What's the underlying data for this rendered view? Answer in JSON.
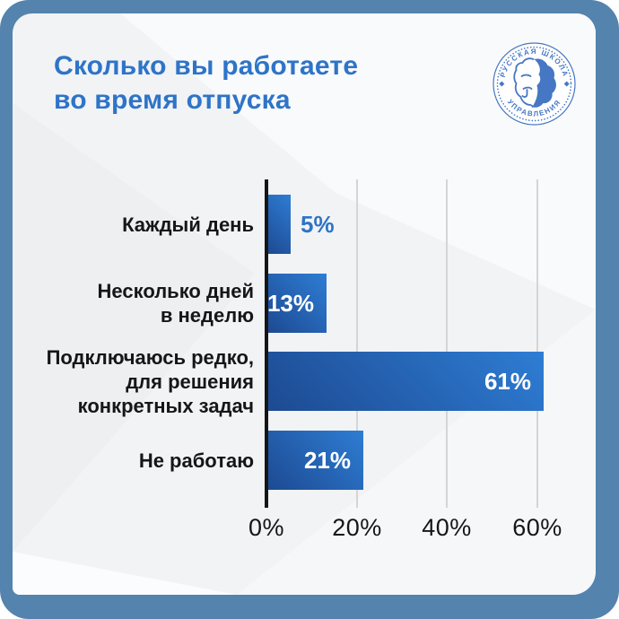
{
  "header": {
    "title_line1": "Сколько вы работаете",
    "title_line2": "во время отпуска"
  },
  "logo": {
    "arc_top": "РУССКАЯ ШКОЛА",
    "arc_bottom": "УПРАВЛЕНИЯ"
  },
  "chart_data": {
    "type": "bar",
    "orientation": "horizontal",
    "title": "Сколько вы работаете во время отпуска",
    "categories": [
      "Каждый день",
      "Несколько дней\nв неделю",
      "Подключаюсь редко,\nдля решения\nконкретных задач",
      "Не работаю"
    ],
    "values": [
      5,
      13,
      61,
      21
    ],
    "value_labels": [
      "5%",
      "13%",
      "61%",
      "21%"
    ],
    "x_tick_labels": [
      "0%",
      "20%",
      "40%",
      "60%"
    ],
    "x_tick_values": [
      0,
      20,
      40,
      60
    ],
    "xlim": [
      0,
      68
    ],
    "grid": true,
    "legend": null,
    "bar_color_start": "#1d4a92",
    "bar_color_end": "#2e7dd4"
  },
  "colors": {
    "frame": "#5483ae",
    "card_bg": "#f2f3f5",
    "accent_blue": "#2e74c8",
    "text_dark": "#161616",
    "grid_line": "#d4d5d7",
    "logo_blue": "#4677c5",
    "value_text_inside": "#ffffff"
  }
}
